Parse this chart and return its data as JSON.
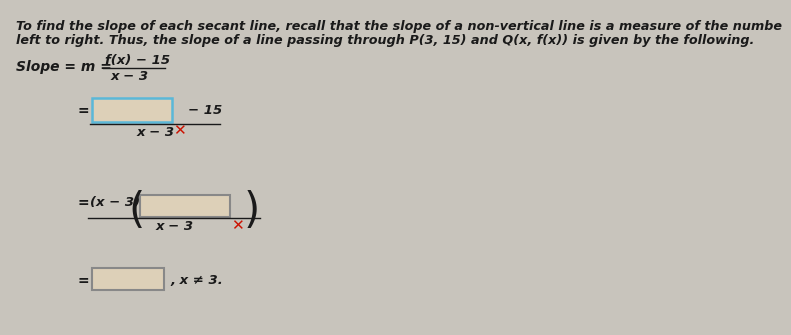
{
  "bg_color": "#c8c4bc",
  "text_color": "#1a1a1a",
  "box_fill": "#ddd0b8",
  "box_border_blue": "#5ab8d8",
  "box_border_gray": "#888888",
  "red_x_color": "#cc1100",
  "line1": "To find the slope of each secant line, recall that the slope of a non-vertical line is a measure of the numbe",
  "line2": "left to right. Thus, the slope of a line passing through P(3, 15) and Q(x, f(x)) is given by the following.",
  "slope_label": "Slope = m =",
  "frac1_num": "f(x) − 15",
  "frac1_den": "x − 3",
  "minus15": "− 15",
  "den2": "x − 3",
  "xm3_label": "(x − 3)",
  "den3": "x − 3",
  "last_tail": ", x ≠ 3.",
  "eq_sign": "="
}
